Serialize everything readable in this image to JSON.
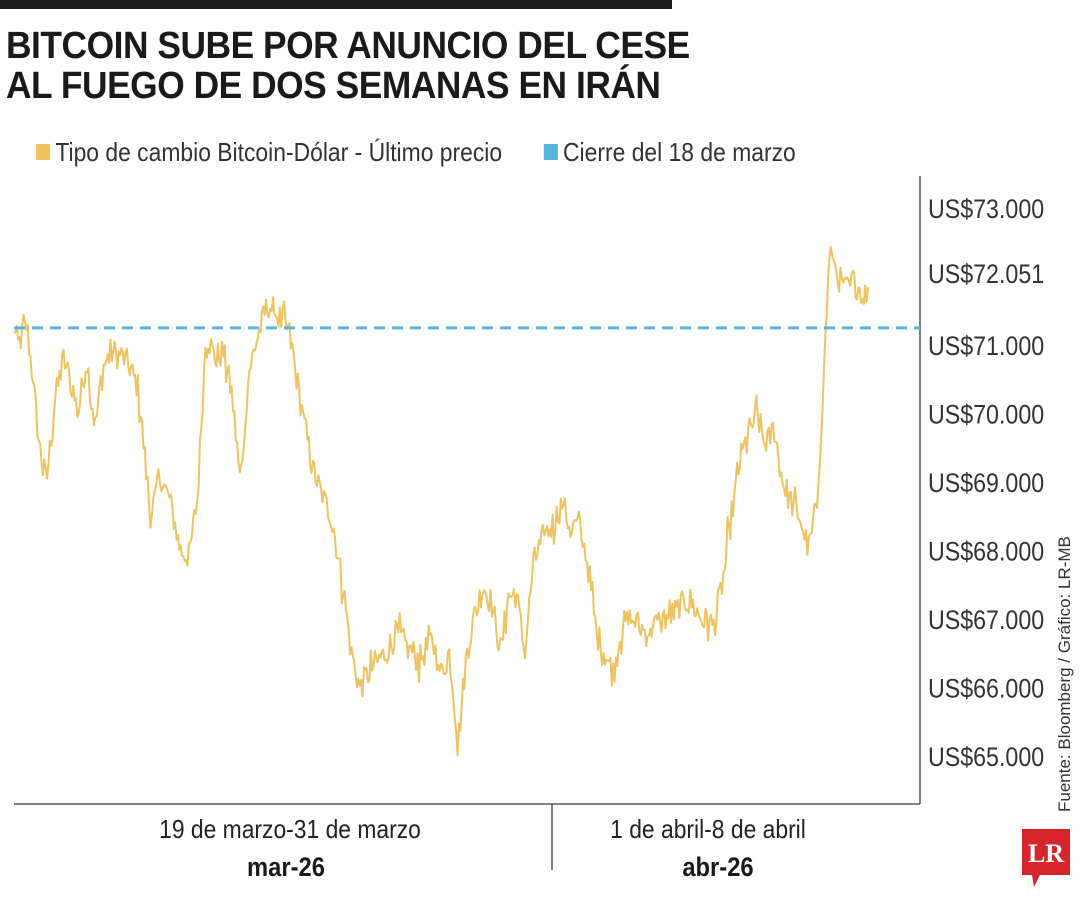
{
  "title_lines": [
    "BITCOIN SUBE POR ANUNCIO DEL CESE",
    "AL FUEGO DE DOS SEMANAS EN IRÁN"
  ],
  "source": "Fuente: Bloomberg / Gráfico: LR-MB",
  "logo_text": "LR",
  "colors": {
    "series": "#eec463",
    "reference": "#5ab4e0",
    "logo": "#d7252e",
    "axis": "#555555"
  },
  "chart_data": {
    "type": "line",
    "series": [
      {
        "name": "Tipo de cambio Bitcoin-Dólar - Último precio",
        "x_start": "2026-03-19",
        "x_end": "2026-04-08",
        "anchors": [
          [
            0.0,
            71200
          ],
          [
            0.005,
            71000
          ],
          [
            0.015,
            71300
          ],
          [
            0.022,
            70500
          ],
          [
            0.03,
            69500
          ],
          [
            0.038,
            69000
          ],
          [
            0.048,
            70200
          ],
          [
            0.058,
            70800
          ],
          [
            0.068,
            70400
          ],
          [
            0.075,
            70000
          ],
          [
            0.085,
            70800
          ],
          [
            0.095,
            69800
          ],
          [
            0.105,
            70700
          ],
          [
            0.115,
            70900
          ],
          [
            0.13,
            70800
          ],
          [
            0.145,
            70400
          ],
          [
            0.16,
            68500
          ],
          [
            0.172,
            69100
          ],
          [
            0.185,
            68600
          ],
          [
            0.195,
            68000
          ],
          [
            0.205,
            67900
          ],
          [
            0.215,
            68800
          ],
          [
            0.225,
            71200
          ],
          [
            0.235,
            70800
          ],
          [
            0.245,
            70900
          ],
          [
            0.255,
            70300
          ],
          [
            0.265,
            69000
          ],
          [
            0.275,
            70600
          ],
          [
            0.287,
            71200
          ],
          [
            0.298,
            71600
          ],
          [
            0.31,
            71400
          ],
          [
            0.322,
            71200
          ],
          [
            0.335,
            70200
          ],
          [
            0.348,
            69300
          ],
          [
            0.36,
            68800
          ],
          [
            0.372,
            68500
          ],
          [
            0.385,
            67500
          ],
          [
            0.395,
            66500
          ],
          [
            0.405,
            66000
          ],
          [
            0.42,
            66300
          ],
          [
            0.435,
            66500
          ],
          [
            0.448,
            66800
          ],
          [
            0.46,
            66600
          ],
          [
            0.475,
            66400
          ],
          [
            0.49,
            66700
          ],
          [
            0.5,
            66200
          ],
          [
            0.51,
            66500
          ],
          [
            0.52,
            65200
          ],
          [
            0.53,
            66500
          ],
          [
            0.54,
            67100
          ],
          [
            0.55,
            67500
          ],
          [
            0.56,
            67200
          ],
          [
            0.57,
            66500
          ],
          [
            0.578,
            67300
          ],
          [
            0.588,
            67400
          ],
          [
            0.598,
            66500
          ],
          [
            0.608,
            67800
          ],
          [
            0.62,
            68200
          ],
          [
            0.632,
            68400
          ],
          [
            0.642,
            68700
          ],
          [
            0.652,
            68300
          ],
          [
            0.662,
            68400
          ],
          [
            0.672,
            67800
          ],
          [
            0.682,
            66800
          ],
          [
            0.692,
            66500
          ],
          [
            0.702,
            66200
          ],
          [
            0.712,
            66900
          ],
          [
            0.725,
            67000
          ],
          [
            0.74,
            66800
          ],
          [
            0.76,
            67000
          ],
          [
            0.775,
            67100
          ],
          [
            0.79,
            67300
          ],
          [
            0.805,
            67000
          ],
          [
            0.82,
            66900
          ],
          [
            0.832,
            67700
          ],
          [
            0.84,
            68500
          ],
          [
            0.85,
            69300
          ],
          [
            0.86,
            69700
          ],
          [
            0.87,
            70000
          ],
          [
            0.88,
            69500
          ],
          [
            0.89,
            69800
          ],
          [
            0.9,
            69000
          ],
          [
            0.91,
            68700
          ],
          [
            0.92,
            68500
          ],
          [
            0.93,
            68000
          ],
          [
            0.94,
            68600
          ],
          [
            0.948,
            70500
          ],
          [
            0.955,
            72400
          ],
          [
            0.962,
            72100
          ],
          [
            0.972,
            71800
          ],
          [
            0.985,
            71900
          ],
          [
            1.0,
            71700
          ]
        ]
      },
      {
        "name": "Cierre del 18 de marzo",
        "values": [
          71250
        ]
      }
    ],
    "ylim": [
      64300,
      73500
    ],
    "y_ticks": [
      "US$73.000",
      "US$72.051",
      "US$71.000",
      "US$70.000",
      "US$69.000",
      "US$68.000",
      "US$67.000",
      "US$66.000",
      "US$65.000"
    ],
    "y_tick_values": [
      73000,
      72051,
      71000,
      70000,
      69000,
      68000,
      67000,
      66000,
      65000
    ],
    "x_groups": [
      {
        "range_label": "19 de marzo-31 de marzo",
        "period_label": "mar-26"
      },
      {
        "range_label": "1 de abril-8 de abril",
        "period_label": "abr-26"
      }
    ]
  }
}
